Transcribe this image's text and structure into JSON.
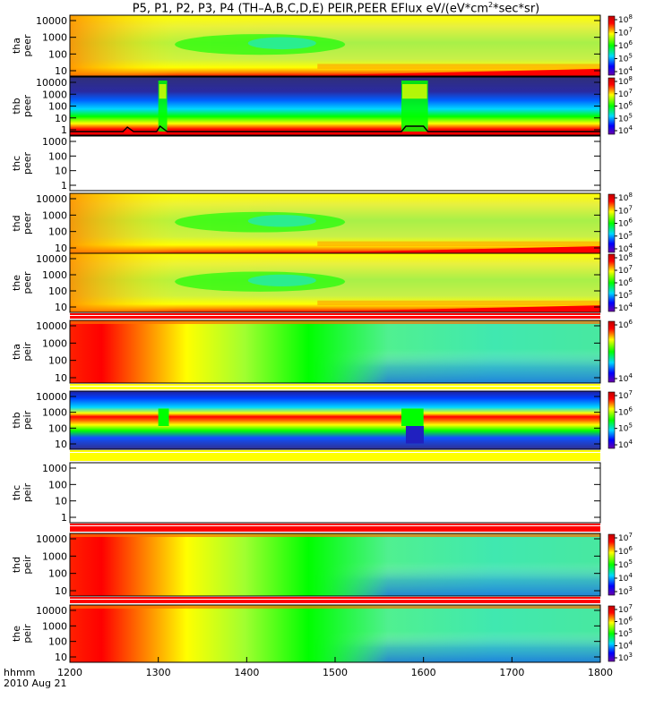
{
  "title_parts": [
    "P5, P1, P2, P3, P4 (TH–A,B,C,D,E) PEIR,PEER EFlux eV/(eV*cm",
    "2",
    "*sec*sr)"
  ],
  "footer": {
    "hhmm": "hhmm",
    "date": "2010 Aug 21"
  },
  "colors": {
    "low": "#6a00a8",
    "blue": "#0000ff",
    "cyan": "#00d8ff",
    "green": "#00ff00",
    "yellow": "#ffff00",
    "red": "#ff0000"
  },
  "chart_data": {
    "type": "heatmap",
    "x_axis": {
      "label": "hhmm",
      "ticks": [
        "1200",
        "1300",
        "1400",
        "1500",
        "1600",
        "1700",
        "1800"
      ],
      "range": [
        "1200",
        "1800"
      ]
    },
    "y_scale": "log",
    "panels": [
      {
        "id": "tha-peer",
        "ylabel": [
          "tha",
          "peer"
        ],
        "yticks": [
          "10",
          "100",
          "1000",
          "10000"
        ],
        "cbar_ticks": [
          "10",
          "10",
          "10",
          "10",
          "10"
        ],
        "cbar_exps": [
          "8",
          "7",
          "6",
          "5",
          "4"
        ],
        "style": "peer"
      },
      {
        "id": "thb-peer",
        "ylabel": [
          "thb",
          "peer"
        ],
        "yticks": [
          "1",
          "10",
          "100",
          "1000",
          "10000"
        ],
        "cbar_ticks": [
          "10",
          "10",
          "10",
          "10",
          "10"
        ],
        "cbar_exps": [
          "8",
          "7",
          "6",
          "5",
          "4"
        ],
        "style": "thb-peer"
      },
      {
        "id": "thc-peer",
        "ylabel": [
          "thc",
          "peer"
        ],
        "yticks": [
          "1",
          "10",
          "100",
          "1000"
        ],
        "cbar_ticks": [],
        "cbar_exps": [],
        "style": "empty"
      },
      {
        "id": "thd-peer",
        "ylabel": [
          "thd",
          "peer"
        ],
        "yticks": [
          "10",
          "100",
          "1000",
          "10000"
        ],
        "cbar_ticks": [
          "10",
          "10",
          "10",
          "10",
          "10"
        ],
        "cbar_exps": [
          "8",
          "7",
          "6",
          "5",
          "4"
        ],
        "style": "peer"
      },
      {
        "id": "the-peer",
        "ylabel": [
          "the",
          "peer"
        ],
        "yticks": [
          "10",
          "100",
          "1000",
          "10000"
        ],
        "cbar_ticks": [
          "10",
          "10",
          "10",
          "10",
          "10"
        ],
        "cbar_exps": [
          "8",
          "7",
          "6",
          "5",
          "4"
        ],
        "style": "peer"
      },
      {
        "id": "tha-peir",
        "ylabel": [
          "tha",
          "peir"
        ],
        "yticks": [
          "10",
          "100",
          "1000",
          "10000"
        ],
        "cbar_ticks": [
          "10",
          "10"
        ],
        "cbar_exps": [
          "6",
          "4"
        ],
        "style": "peir"
      },
      {
        "id": "thb-peir",
        "ylabel": [
          "thb",
          "peir"
        ],
        "yticks": [
          "10",
          "100",
          "1000",
          "10000"
        ],
        "cbar_ticks": [
          "10",
          "10",
          "10",
          "10"
        ],
        "cbar_exps": [
          "7",
          "6",
          "5",
          "4"
        ],
        "style": "thb-peir"
      },
      {
        "id": "thc-peir",
        "ylabel": [
          "thc",
          "peir"
        ],
        "yticks": [
          "1",
          "10",
          "100",
          "1000"
        ],
        "cbar_ticks": [],
        "cbar_exps": [],
        "style": "empty"
      },
      {
        "id": "thd-peir",
        "ylabel": [
          "thd",
          "peir"
        ],
        "yticks": [
          "10",
          "100",
          "1000",
          "10000"
        ],
        "cbar_ticks": [
          "10",
          "10",
          "10",
          "10",
          "10"
        ],
        "cbar_exps": [
          "7",
          "6",
          "5",
          "4",
          "3"
        ],
        "style": "peir"
      },
      {
        "id": "the-peir",
        "ylabel": [
          "the",
          "peir"
        ],
        "yticks": [
          "10",
          "100",
          "1000",
          "10000"
        ],
        "cbar_ticks": [
          "10",
          "10",
          "10",
          "10",
          "10"
        ],
        "cbar_exps": [
          "7",
          "6",
          "5",
          "4",
          "3"
        ],
        "style": "peir"
      }
    ]
  }
}
